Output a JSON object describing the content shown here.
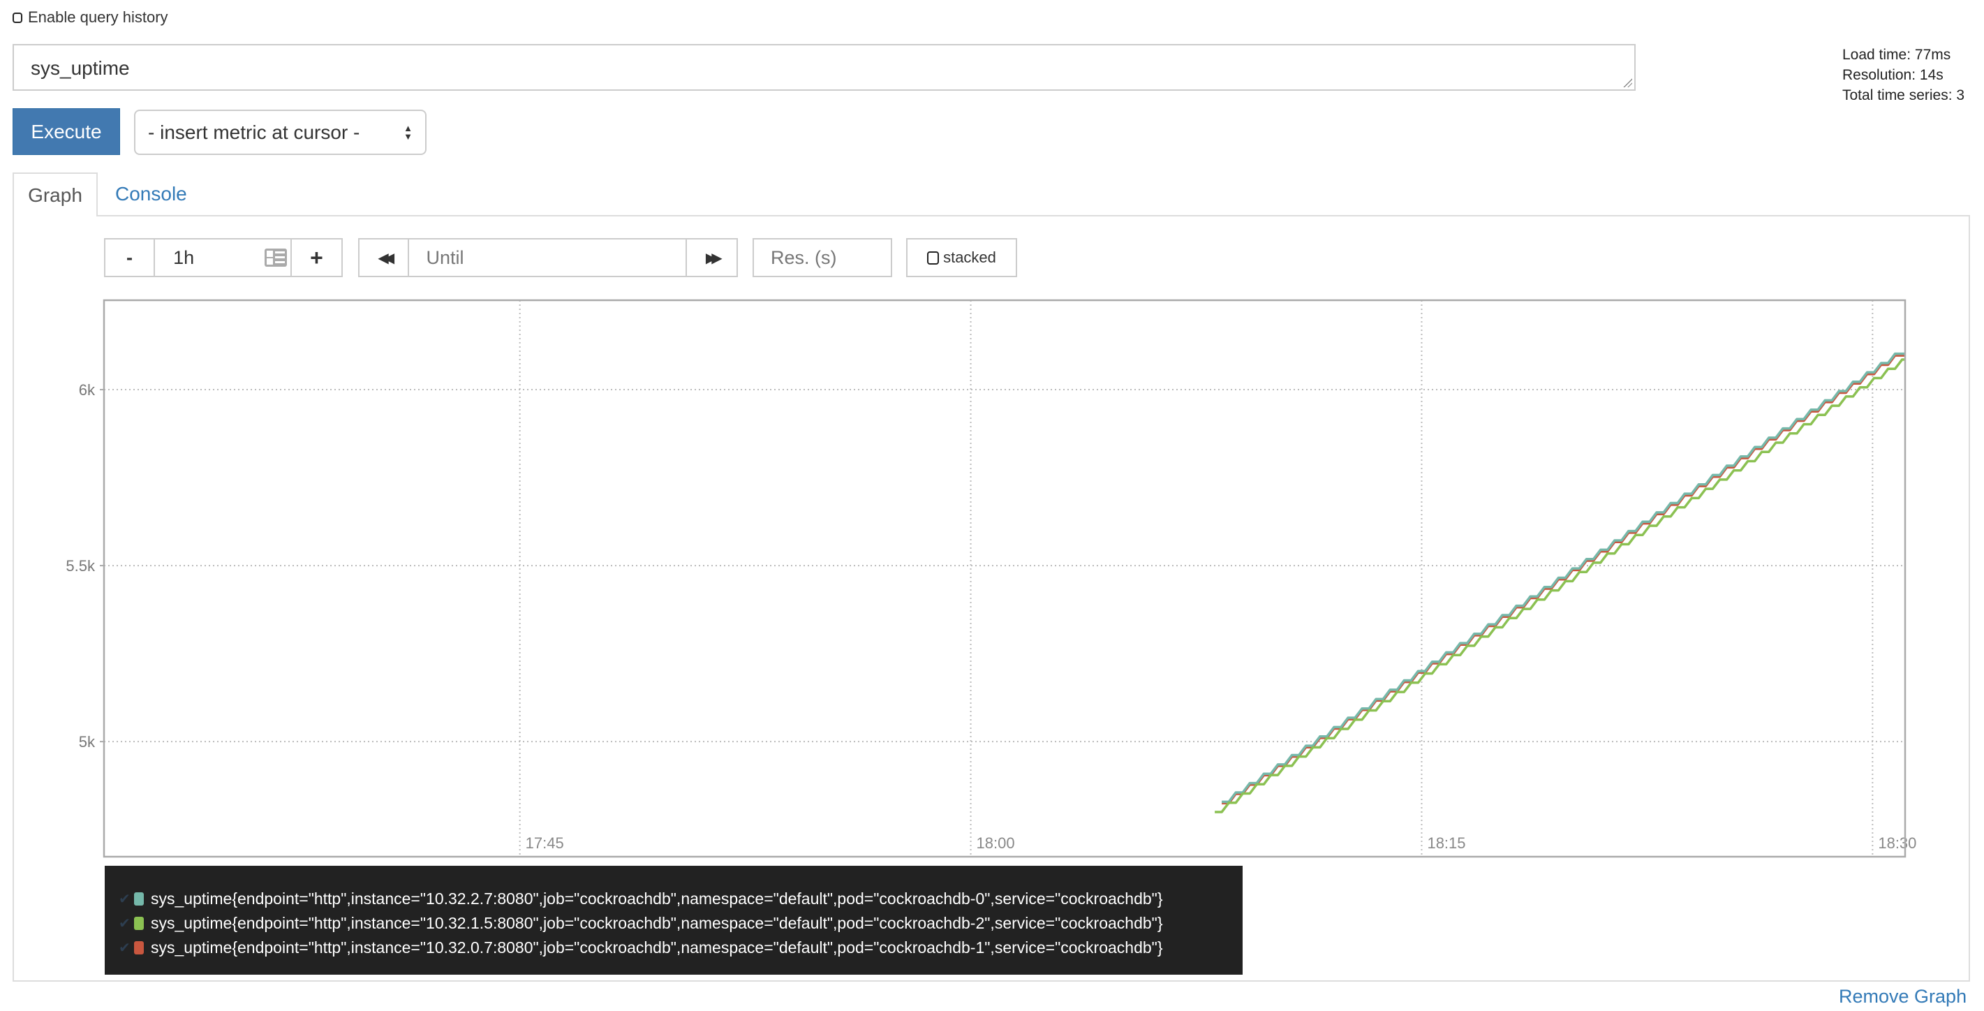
{
  "query_history": {
    "label": "Enable query history",
    "checked": false
  },
  "expression": {
    "value": "sys_uptime"
  },
  "stats": {
    "load_time": "Load time: 77ms",
    "resolution": "Resolution: 14s",
    "total_series": "Total time series: 3"
  },
  "execute_label": "Execute",
  "metric_select": {
    "selected": "- insert metric at cursor -"
  },
  "tabs": [
    {
      "label": "Graph",
      "active": true
    },
    {
      "label": "Console",
      "active": false
    }
  ],
  "controls": {
    "range_minus": "-",
    "range_value": "1h",
    "range_plus": "+",
    "until_placeholder": "Until",
    "res_placeholder": "Res. (s)",
    "stacked_label": "stacked",
    "stacked_checked": false
  },
  "remove_graph": "Remove Graph",
  "chart_data": {
    "type": "line",
    "step_style": "staircase",
    "xlim": [
      "17:31:10",
      "18:31:05"
    ],
    "ylim": [
      4673,
      6254
    ],
    "x_ticks": [
      "17:45",
      "18:00",
      "18:15",
      "18:30"
    ],
    "y_ticks": [
      {
        "value": 5000,
        "label": "5k"
      },
      {
        "value": 5500,
        "label": "5.5k"
      },
      {
        "value": 6000,
        "label": "6k"
      }
    ],
    "grid": true,
    "legend_placement": "bottom",
    "series": [
      {
        "name": "sys_uptime{endpoint=\"http\",instance=\"10.32.2.7:8080\",job=\"cockroachdb\",namespace=\"default\",pod=\"cockroachdb-0\",service=\"cockroachdb\"}",
        "color": "#75b8aa",
        "start": [
          "18:08:21",
          4829
        ],
        "end": [
          "18:31:05",
          6121
        ]
      },
      {
        "name": "sys_uptime{endpoint=\"http\",instance=\"10.32.1.5:8080\",job=\"cockroachdb\",namespace=\"default\",pod=\"cockroachdb-2\",service=\"cockroachdb\"}",
        "color": "#8bc152",
        "start": [
          "18:08:07",
          4800
        ],
        "end": [
          "18:31:05",
          6091
        ]
      },
      {
        "name": "sys_uptime{endpoint=\"http\",instance=\"10.32.0.7:8080\",job=\"cockroachdb\",namespace=\"default\",pod=\"cockroachdb-1\",service=\"cockroachdb\"}",
        "color": "#c9573f",
        "start": [
          "18:08:21",
          4825
        ],
        "end": [
          "18:31:05",
          6116
        ]
      }
    ]
  }
}
